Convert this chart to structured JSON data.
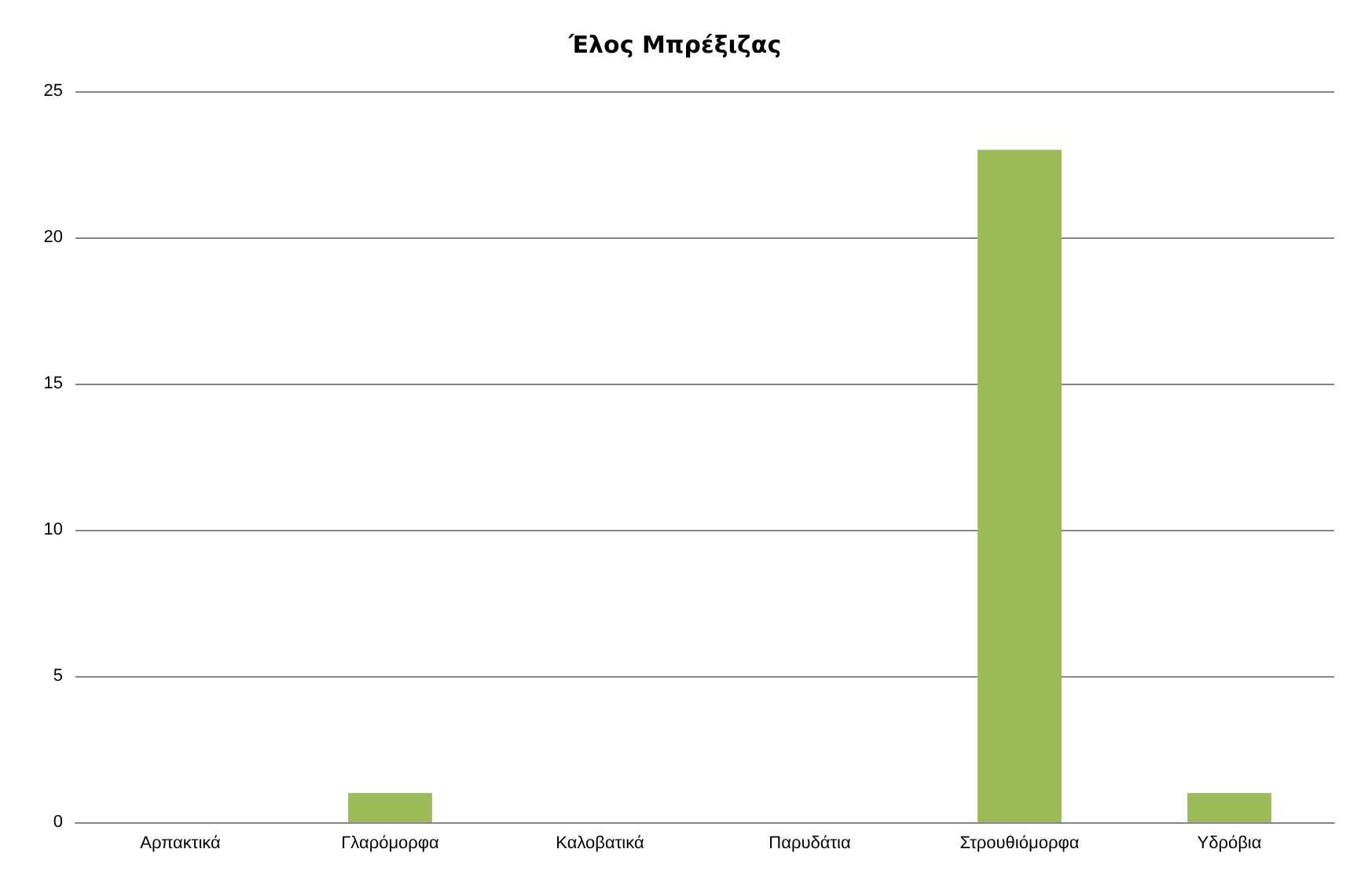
{
  "chart_data": {
    "type": "bar",
    "title": "Έλος Μπρέξιζας",
    "categories": [
      "Αρπακτικά",
      "Γλαρόμορφα",
      "Καλοβατικά",
      "Παρυδάτια",
      "Στρουθιόμορφα",
      "Υδρόβια"
    ],
    "values": [
      0,
      1,
      0,
      0,
      23,
      1
    ],
    "color": "#9bbb59",
    "ylim": [
      0,
      25
    ],
    "yticks": [
      0,
      5,
      10,
      15,
      20,
      25
    ],
    "grid": "y"
  }
}
